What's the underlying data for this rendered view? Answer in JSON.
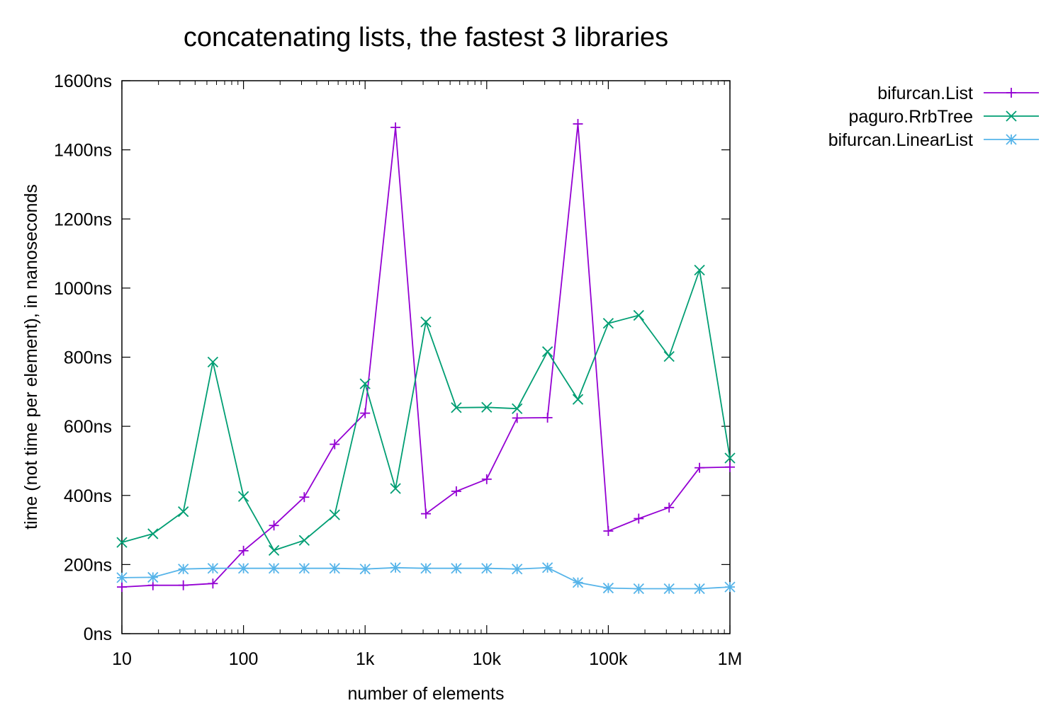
{
  "chart_data": {
    "type": "line",
    "title": "concatenating lists, the fastest 3 libraries",
    "xlabel": "number of elements",
    "ylabel": "time (not time per element), in nanoseconds",
    "xscale": "log",
    "xlim": [
      10,
      1000000
    ],
    "ylim": [
      0,
      1600
    ],
    "xticks": [
      {
        "value": 10,
        "label": "10"
      },
      {
        "value": 100,
        "label": "100"
      },
      {
        "value": 1000,
        "label": "1k"
      },
      {
        "value": 10000,
        "label": "10k"
      },
      {
        "value": 100000,
        "label": "100k"
      },
      {
        "value": 1000000,
        "label": "1M"
      }
    ],
    "yticks": [
      {
        "value": 0,
        "label": "0ns"
      },
      {
        "value": 200,
        "label": "200ns"
      },
      {
        "value": 400,
        "label": "400ns"
      },
      {
        "value": 600,
        "label": "600ns"
      },
      {
        "value": 800,
        "label": "800ns"
      },
      {
        "value": 1000,
        "label": "1000ns"
      },
      {
        "value": 1200,
        "label": "1200ns"
      },
      {
        "value": 1400,
        "label": "1400ns"
      },
      {
        "value": 1600,
        "label": "1600ns"
      }
    ],
    "grid": false,
    "legend_position": "top-right-outside",
    "x": [
      10,
      18,
      32,
      56,
      100,
      178,
      316,
      562,
      1000,
      1778,
      3162,
      5623,
      10000,
      17783,
      31623,
      56234,
      100000,
      177828,
      316228,
      562341,
      1000000
    ],
    "series": [
      {
        "name": "bifurcan.List",
        "color": "#9400d3",
        "marker": "plus",
        "values": [
          135,
          140,
          140,
          145,
          240,
          313,
          395,
          548,
          638,
          1465,
          347,
          412,
          447,
          624,
          625,
          1475,
          297,
          333,
          365,
          480,
          482
        ]
      },
      {
        "name": "paguro.RrbTree",
        "color": "#009e73",
        "marker": "x",
        "values": [
          264,
          289,
          353,
          786,
          397,
          241,
          270,
          344,
          723,
          420,
          902,
          654,
          655,
          651,
          816,
          678,
          898,
          921,
          802,
          1052,
          508
        ]
      },
      {
        "name": "bifurcan.LinearList",
        "color": "#56b4e9",
        "marker": "star",
        "values": [
          162,
          163,
          187,
          189,
          189,
          189,
          189,
          189,
          187,
          191,
          189,
          189,
          189,
          187,
          191,
          148,
          132,
          130,
          130,
          130,
          135
        ]
      }
    ]
  }
}
